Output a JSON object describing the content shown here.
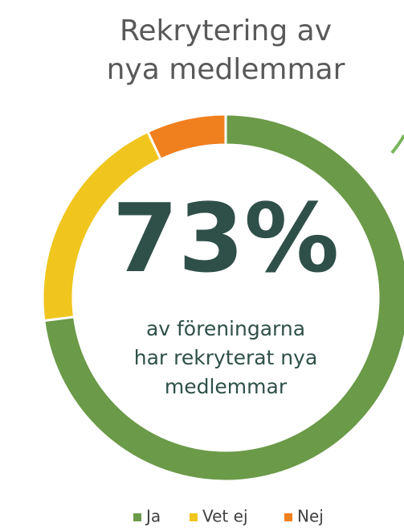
{
  "chart_data": {
    "type": "pie",
    "title": [
      "Rekrytering av",
      "nya medlemmar"
    ],
    "categories": [
      "Ja",
      "Vet ej",
      "Nej"
    ],
    "values": [
      73,
      20,
      7
    ],
    "colors": [
      "#6b9a48",
      "#f0c61e",
      "#f07f1e"
    ],
    "donut": true,
    "center_value": "73%",
    "center_text": [
      "av föreningarna",
      "har rekryterat nya",
      "medlemmar"
    ],
    "legend": "bottom"
  }
}
